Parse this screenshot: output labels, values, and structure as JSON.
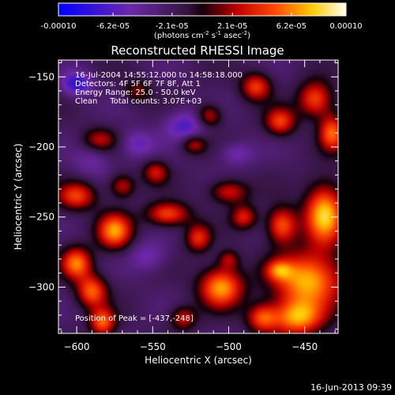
{
  "chart_data": {
    "type": "heatmap",
    "title": "Reconstructed RHESSI Image",
    "xlabel": "Heliocentric X (arcsec)",
    "ylabel": "Heliocentric Y (arcsec)",
    "xlim": [
      -612,
      -428
    ],
    "ylim": [
      -333,
      -138
    ],
    "x_ticks": [
      -600,
      -550,
      -500,
      -450
    ],
    "y_ticks": [
      -150,
      -200,
      -250,
      -300
    ],
    "colorbar": {
      "range": [
        -0.0001,
        0.0001
      ],
      "tick_values": [
        -0.0001,
        -6.2e-05,
        -2.1e-05,
        2.1e-05,
        6.2e-05,
        0.0001
      ],
      "tick_labels": [
        "-0.00010",
        "-6.2e-05",
        "-2.1e-05",
        "2.1e-05",
        "6.2e-05",
        "0.00010"
      ],
      "unit_label": "(photons cm",
      "unit_exp1": "-2",
      "unit_mid": " s",
      "unit_exp2": "-1",
      "unit_mid2": " asec",
      "unit_exp3": "-2",
      "unit_end": ")"
    },
    "info_lines": [
      "16-Jul-2004 14:55:12.000 to 14:58:18.000",
      "Detectors: 4F 5F 6F 7F 8F, Att 1",
      "Energy Range: 25.0 - 50.0 keV",
      "Clean     Total counts: 3.07E+03"
    ],
    "peak_label": "Position of Peak = [-437,-248]",
    "peak_position": [
      -437,
      -248
    ],
    "sources": [
      {
        "x": -437,
        "y": -248,
        "amp": 1.0,
        "sx": 9,
        "sy": 15
      },
      {
        "x": -448,
        "y": -295,
        "amp": 0.95,
        "sx": 16,
        "sy": 14
      },
      {
        "x": -505,
        "y": -300,
        "amp": 0.9,
        "sx": 10,
        "sy": 10
      },
      {
        "x": -455,
        "y": -322,
        "amp": 0.85,
        "sx": 12,
        "sy": 9
      },
      {
        "x": -575,
        "y": -260,
        "amp": 0.85,
        "sx": 8,
        "sy": 9
      },
      {
        "x": -600,
        "y": -283,
        "amp": 0.8,
        "sx": 7,
        "sy": 8
      },
      {
        "x": -590,
        "y": -303,
        "amp": 0.75,
        "sx": 7,
        "sy": 8
      },
      {
        "x": -583,
        "y": -325,
        "amp": 0.75,
        "sx": 6,
        "sy": 7
      },
      {
        "x": -443,
        "y": -166,
        "amp": 0.7,
        "sx": 8,
        "sy": 9
      },
      {
        "x": -432,
        "y": -190,
        "amp": 0.75,
        "sx": 6,
        "sy": 9
      },
      {
        "x": -466,
        "y": -182,
        "amp": 0.65,
        "sx": 7,
        "sy": 7
      },
      {
        "x": -482,
        "y": -157,
        "amp": 0.65,
        "sx": 7,
        "sy": 7
      },
      {
        "x": -465,
        "y": -256,
        "amp": 0.75,
        "sx": 7,
        "sy": 9
      },
      {
        "x": -490,
        "y": -250,
        "amp": 0.55,
        "sx": 6,
        "sy": 6
      },
      {
        "x": -540,
        "y": -248,
        "amp": 0.7,
        "sx": 10,
        "sy": 6
      },
      {
        "x": -520,
        "y": -265,
        "amp": 0.6,
        "sx": 6,
        "sy": 7
      },
      {
        "x": -500,
        "y": -232,
        "amp": 0.55,
        "sx": 9,
        "sy": 6
      },
      {
        "x": -513,
        "y": -178,
        "amp": 0.55,
        "sx": 6,
        "sy": 6
      },
      {
        "x": -523,
        "y": -198,
        "amp": 0.5,
        "sx": 6,
        "sy": 5
      },
      {
        "x": -600,
        "y": -235,
        "amp": 0.65,
        "sx": 9,
        "sy": 7
      },
      {
        "x": -548,
        "y": -218,
        "amp": 0.5,
        "sx": 6,
        "sy": 6
      },
      {
        "x": -570,
        "y": -228,
        "amp": 0.5,
        "sx": 6,
        "sy": 6
      },
      {
        "x": -467,
        "y": -288,
        "amp": 0.5,
        "sx": 6,
        "sy": 5
      },
      {
        "x": -478,
        "y": -322,
        "amp": 0.65,
        "sx": 7,
        "sy": 7
      },
      {
        "x": -530,
        "y": -322,
        "amp": 0.5,
        "sx": 6,
        "sy": 6
      },
      {
        "x": -585,
        "y": -195,
        "amp": 0.45,
        "sx": 8,
        "sy": 6
      },
      {
        "x": -500,
        "y": -280,
        "amp": 0.4,
        "sx": 5,
        "sy": 5
      },
      {
        "x": -560,
        "y": -160,
        "amp": 0.35,
        "sx": 6,
        "sy": 6
      },
      {
        "x": -600,
        "y": -155,
        "amp": -0.55,
        "sx": 7,
        "sy": 6
      },
      {
        "x": -528,
        "y": -185,
        "amp": -0.45,
        "sx": 10,
        "sy": 8
      },
      {
        "x": -560,
        "y": -198,
        "amp": -0.35,
        "sx": 8,
        "sy": 7
      },
      {
        "x": -495,
        "y": -205,
        "amp": -0.3,
        "sx": 8,
        "sy": 6
      },
      {
        "x": -553,
        "y": -278,
        "amp": -0.3,
        "sx": 9,
        "sy": 8
      },
      {
        "x": -590,
        "y": -210,
        "amp": -0.25,
        "sx": 9,
        "sy": 8
      }
    ]
  },
  "footer": {
    "timestamp": "16-Jun-2013 09:39"
  },
  "colors": {
    "background": "#000000",
    "text": "#ffffff"
  }
}
